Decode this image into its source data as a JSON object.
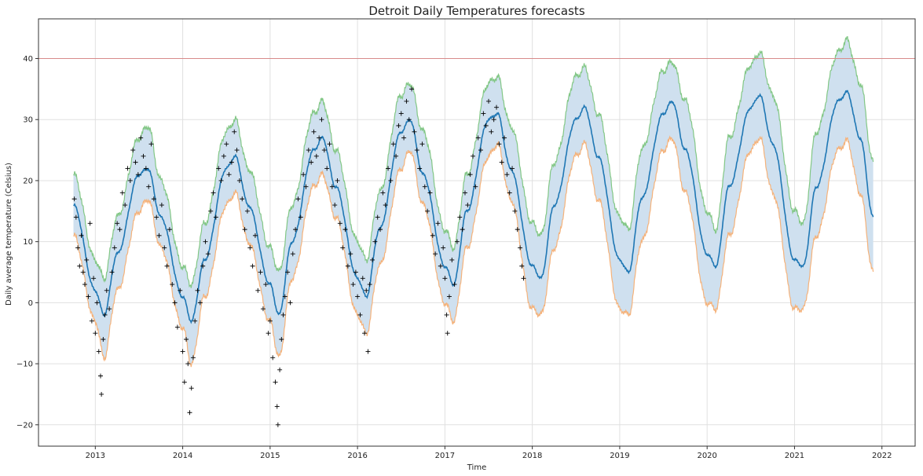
{
  "chart_data": {
    "type": "line",
    "title": "Detroit Daily Temperatures forecasts",
    "xlabel": "Time",
    "ylabel": "Daily average temperature (Celsius)",
    "xlim": [
      2012.35,
      2022.38
    ],
    "ylim": [
      -23.5,
      46.5
    ],
    "xticks": [
      2013,
      2014,
      2015,
      2016,
      2017,
      2018,
      2019,
      2020,
      2021,
      2022
    ],
    "yticks": [
      -20,
      -10,
      0,
      10,
      20,
      30,
      40
    ],
    "grid": true,
    "legend": "none",
    "reference_line": {
      "y": 40,
      "color": "#d88a8a"
    },
    "observed_x_range": [
      2012.75,
      2017.9
    ],
    "forecast_x_range": [
      2012.75,
      2021.9
    ],
    "trend": {
      "x": [
        2012.75,
        2013.0,
        2013.1,
        2013.25,
        2013.5,
        2013.6,
        2013.75,
        2014.0,
        2014.1,
        2014.25,
        2014.5,
        2014.6,
        2014.75,
        2015.0,
        2015.1,
        2015.25,
        2015.5,
        2015.6,
        2015.75,
        2016.0,
        2016.1,
        2016.25,
        2016.5,
        2016.6,
        2016.75,
        2017.0,
        2017.1,
        2017.25,
        2017.5,
        2017.6,
        2017.75,
        2018.0,
        2018.1,
        2018.25,
        2018.5,
        2018.6,
        2018.75,
        2019.0,
        2019.1,
        2019.25,
        2019.5,
        2019.6,
        2019.75,
        2020.0,
        2020.1,
        2020.25,
        2020.5,
        2020.6,
        2020.75,
        2021.0,
        2021.1,
        2021.25,
        2021.5,
        2021.6,
        2021.75,
        2021.9
      ],
      "yhat": [
        16,
        2,
        -2,
        8,
        21,
        22,
        14,
        1,
        -3,
        7,
        22,
        24,
        16,
        3,
        -2,
        10,
        25,
        27,
        19,
        4,
        1,
        12,
        28,
        30,
        21,
        6,
        3,
        15,
        30,
        31,
        22,
        6,
        4,
        16,
        30,
        32,
        24,
        7,
        5,
        17,
        31,
        33,
        25,
        8,
        6,
        19,
        32,
        34,
        26,
        7,
        6,
        19,
        33,
        34.5,
        27,
        14
      ],
      "upper": [
        21,
        7,
        4,
        14,
        27,
        29,
        20,
        6,
        3,
        13,
        28,
        30,
        22,
        9,
        5,
        16,
        31,
        33,
        25,
        10,
        7,
        18,
        34,
        36,
        28,
        12,
        9,
        21,
        36,
        37,
        29,
        13,
        11,
        23,
        37,
        38.5,
        31,
        14,
        12,
        25,
        38,
        39.5,
        33,
        15,
        12,
        27,
        39,
        41,
        34,
        15,
        13,
        28,
        41,
        43,
        36,
        23
      ],
      "lower": [
        11,
        -3,
        -9,
        2,
        15,
        17,
        9,
        -4,
        -10,
        1,
        16,
        18,
        10,
        -3,
        -9,
        4,
        19,
        21,
        14,
        -2,
        -5,
        6,
        22,
        25,
        16,
        0,
        -3,
        9,
        24,
        26,
        17,
        -1,
        -2,
        9,
        24,
        26,
        17,
        -1,
        -2,
        10,
        25,
        27,
        18,
        0,
        -1,
        11,
        25,
        27,
        18,
        -1,
        -1,
        11,
        25,
        26.5,
        18,
        5
      ]
    },
    "observed_points": [
      [
        2012.76,
        17
      ],
      [
        2012.78,
        14
      ],
      [
        2012.8,
        9
      ],
      [
        2012.82,
        6
      ],
      [
        2012.84,
        11
      ],
      [
        2012.86,
        5
      ],
      [
        2012.88,
        3
      ],
      [
        2012.9,
        7
      ],
      [
        2012.92,
        1
      ],
      [
        2012.94,
        13
      ],
      [
        2012.96,
        -3
      ],
      [
        2012.98,
        4
      ],
      [
        2013.0,
        -5
      ],
      [
        2013.02,
        0
      ],
      [
        2013.04,
        -8
      ],
      [
        2013.06,
        -12
      ],
      [
        2013.07,
        -15
      ],
      [
        2013.09,
        -6
      ],
      [
        2013.11,
        -2
      ],
      [
        2013.13,
        2
      ],
      [
        2013.16,
        -1
      ],
      [
        2013.19,
        5
      ],
      [
        2013.22,
        9
      ],
      [
        2013.25,
        13
      ],
      [
        2013.28,
        12
      ],
      [
        2013.31,
        18
      ],
      [
        2013.34,
        16
      ],
      [
        2013.37,
        22
      ],
      [
        2013.4,
        20
      ],
      [
        2013.43,
        25
      ],
      [
        2013.46,
        23
      ],
      [
        2013.49,
        21
      ],
      [
        2013.52,
        27
      ],
      [
        2013.55,
        24
      ],
      [
        2013.58,
        22
      ],
      [
        2013.61,
        19
      ],
      [
        2013.64,
        26
      ],
      [
        2013.67,
        17
      ],
      [
        2013.7,
        14
      ],
      [
        2013.73,
        11
      ],
      [
        2013.76,
        16
      ],
      [
        2013.79,
        9
      ],
      [
        2013.82,
        6
      ],
      [
        2013.85,
        12
      ],
      [
        2013.88,
        3
      ],
      [
        2013.91,
        0
      ],
      [
        2013.94,
        -4
      ],
      [
        2013.97,
        2
      ],
      [
        2014.0,
        -8
      ],
      [
        2014.02,
        -13
      ],
      [
        2014.04,
        -6
      ],
      [
        2014.06,
        -10
      ],
      [
        2014.08,
        -18
      ],
      [
        2014.1,
        -14
      ],
      [
        2014.12,
        -9
      ],
      [
        2014.14,
        -3
      ],
      [
        2014.17,
        2
      ],
      [
        2014.2,
        0
      ],
      [
        2014.23,
        6
      ],
      [
        2014.26,
        10
      ],
      [
        2014.29,
        8
      ],
      [
        2014.32,
        15
      ],
      [
        2014.35,
        18
      ],
      [
        2014.38,
        14
      ],
      [
        2014.41,
        22
      ],
      [
        2014.44,
        20
      ],
      [
        2014.47,
        24
      ],
      [
        2014.5,
        26
      ],
      [
        2014.53,
        21
      ],
      [
        2014.56,
        23
      ],
      [
        2014.59,
        28
      ],
      [
        2014.62,
        25
      ],
      [
        2014.65,
        20
      ],
      [
        2014.68,
        17
      ],
      [
        2014.71,
        12
      ],
      [
        2014.74,
        15
      ],
      [
        2014.77,
        9
      ],
      [
        2014.8,
        6
      ],
      [
        2014.83,
        11
      ],
      [
        2014.86,
        2
      ],
      [
        2014.89,
        5
      ],
      [
        2014.92,
        -1
      ],
      [
        2014.95,
        3
      ],
      [
        2014.98,
        -5
      ],
      [
        2015.0,
        -3
      ],
      [
        2015.03,
        -9
      ],
      [
        2015.06,
        -13
      ],
      [
        2015.08,
        -17
      ],
      [
        2015.09,
        -20
      ],
      [
        2015.11,
        -11
      ],
      [
        2015.13,
        -6
      ],
      [
        2015.15,
        -2
      ],
      [
        2015.17,
        1
      ],
      [
        2015.2,
        5
      ],
      [
        2015.23,
        0
      ],
      [
        2015.26,
        8
      ],
      [
        2015.29,
        12
      ],
      [
        2015.32,
        17
      ],
      [
        2015.35,
        14
      ],
      [
        2015.38,
        21
      ],
      [
        2015.41,
        19
      ],
      [
        2015.44,
        25
      ],
      [
        2015.47,
        23
      ],
      [
        2015.5,
        28
      ],
      [
        2015.53,
        24
      ],
      [
        2015.56,
        27
      ],
      [
        2015.59,
        30
      ],
      [
        2015.62,
        25
      ],
      [
        2015.65,
        22
      ],
      [
        2015.68,
        26
      ],
      [
        2015.71,
        19
      ],
      [
        2015.74,
        16
      ],
      [
        2015.77,
        20
      ],
      [
        2015.8,
        13
      ],
      [
        2015.83,
        9
      ],
      [
        2015.86,
        12
      ],
      [
        2015.89,
        6
      ],
      [
        2015.92,
        8
      ],
      [
        2015.95,
        3
      ],
      [
        2015.98,
        5
      ],
      [
        2016.0,
        1
      ],
      [
        2016.03,
        -2
      ],
      [
        2016.06,
        4
      ],
      [
        2016.08,
        -5
      ],
      [
        2016.1,
        2
      ],
      [
        2016.12,
        -8
      ],
      [
        2016.14,
        3
      ],
      [
        2016.17,
        7
      ],
      [
        2016.2,
        10
      ],
      [
        2016.23,
        14
      ],
      [
        2016.26,
        12
      ],
      [
        2016.29,
        18
      ],
      [
        2016.32,
        16
      ],
      [
        2016.35,
        22
      ],
      [
        2016.38,
        20
      ],
      [
        2016.41,
        26
      ],
      [
        2016.44,
        24
      ],
      [
        2016.47,
        29
      ],
      [
        2016.5,
        31
      ],
      [
        2016.53,
        27
      ],
      [
        2016.56,
        33
      ],
      [
        2016.59,
        30
      ],
      [
        2016.62,
        35
      ],
      [
        2016.65,
        28
      ],
      [
        2016.68,
        25
      ],
      [
        2016.71,
        22
      ],
      [
        2016.74,
        26
      ],
      [
        2016.77,
        19
      ],
      [
        2016.8,
        15
      ],
      [
        2016.83,
        18
      ],
      [
        2016.86,
        11
      ],
      [
        2016.89,
        8
      ],
      [
        2016.92,
        13
      ],
      [
        2016.95,
        6
      ],
      [
        2016.98,
        9
      ],
      [
        2017.0,
        4
      ],
      [
        2017.02,
        -2
      ],
      [
        2017.03,
        -5
      ],
      [
        2017.05,
        1
      ],
      [
        2017.08,
        7
      ],
      [
        2017.11,
        3
      ],
      [
        2017.14,
        10
      ],
      [
        2017.17,
        14
      ],
      [
        2017.2,
        12
      ],
      [
        2017.23,
        18
      ],
      [
        2017.26,
        16
      ],
      [
        2017.29,
        21
      ],
      [
        2017.32,
        24
      ],
      [
        2017.35,
        19
      ],
      [
        2017.38,
        27
      ],
      [
        2017.41,
        25
      ],
      [
        2017.44,
        31
      ],
      [
        2017.47,
        29
      ],
      [
        2017.5,
        33
      ],
      [
        2017.53,
        28
      ],
      [
        2017.56,
        30
      ],
      [
        2017.59,
        32
      ],
      [
        2017.62,
        26
      ],
      [
        2017.65,
        23
      ],
      [
        2017.68,
        27
      ],
      [
        2017.71,
        21
      ],
      [
        2017.74,
        18
      ],
      [
        2017.77,
        22
      ],
      [
        2017.8,
        15
      ],
      [
        2017.83,
        12
      ],
      [
        2017.86,
        9
      ],
      [
        2017.88,
        6
      ],
      [
        2017.9,
        4
      ]
    ],
    "colors": {
      "band": "#cfe0ef",
      "yhat": "#1f77b4",
      "upper": "#82c785",
      "lower": "#f5b27a",
      "observed": "#000000",
      "grid": "#e0e0e0",
      "axis": "#333333"
    }
  }
}
